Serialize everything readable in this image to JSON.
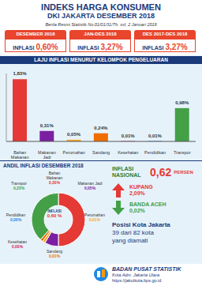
{
  "header": {
    "title": "INDEKS HARGA KONSUMEN",
    "subtitle": "DKI JAKARTA DESEMBER 2018",
    "source": "Berita Resmi Statistik No.01/01/31/Th. xxI, 2 Januari 2019"
  },
  "boxes": [
    {
      "period": "DESEMBER 2018",
      "label": "INFLASI",
      "value": "0,60%"
    },
    {
      "period": "JAN-DES 2018",
      "label": "INFLASI",
      "value": "3,27%"
    },
    {
      "period": "DES 2017-DES 2018",
      "label": "INFLASI",
      "value": "3,27%"
    }
  ],
  "chart_data": [
    {
      "type": "bar",
      "title": "LAJU INFLASI MENURUT KELOMPOK PENGELUARAN",
      "categories": [
        "Bahan Makanan",
        "Makanan Jadi",
        "Perumahan",
        "Sandang",
        "Kesehatan",
        "Pendidikan",
        "Transpor"
      ],
      "values": [
        1.83,
        0.31,
        0.05,
        0.24,
        0.01,
        0.01,
        0.98
      ],
      "value_labels": [
        "1,83%",
        "0,31%",
        "0,05%",
        "0,24%",
        "0,01%",
        "0,01%",
        "0,98%"
      ],
      "colors": [
        "#e53935",
        "#7b1fa2",
        "#f9a825",
        "#ef6c00",
        "#d81b60",
        "#1e88e5",
        "#43a047"
      ],
      "ylim": [
        0,
        2
      ],
      "yticks": [],
      "data_labels": true,
      "tick_labels": "x",
      "grid": false
    },
    {
      "type": "pie",
      "title": "ANDIL INFLASI DESEMBER 2018",
      "categories": [
        "Bahan Makanan",
        "Makanan Jadi",
        "Perumahan",
        "Sandang",
        "Kesehatan",
        "Pendidikan",
        "Transpor"
      ],
      "values": [
        0.3,
        0.05,
        0.01,
        0.01,
        0.0,
        0.0,
        0.23
      ],
      "value_labels": [
        "0,30%",
        "0,05%",
        "0,01%",
        "0,01%",
        "0,00%",
        "0,00%",
        "0,23%"
      ],
      "colors": [
        "#e53935",
        "#7b1fa2",
        "#f9a825",
        "#ef6c00",
        "#d81b60",
        "#1e88e5",
        "#43a047"
      ],
      "data_labels": true,
      "center_label": "INFLASI",
      "center_value_label": "0,60 %"
    }
  ],
  "national": {
    "label": "INFLASI NASIONAL",
    "value": "0,62",
    "unit": "PERSEN"
  },
  "highest": {
    "city": "KUPANG",
    "value": "2,09%"
  },
  "lowest": {
    "city": "BANDA ACEH",
    "value": "0,02%"
  },
  "position": {
    "title": "Posisi Kota Jakarta",
    "rank": "39 dari 82 kota",
    "note": "yang diamati"
  },
  "footer": {
    "org": "BADAN PUSAT STATISTIK",
    "unit": "Kota Adm. Jakarta Utara",
    "url": "https://jakutkota.bps.go.id"
  }
}
